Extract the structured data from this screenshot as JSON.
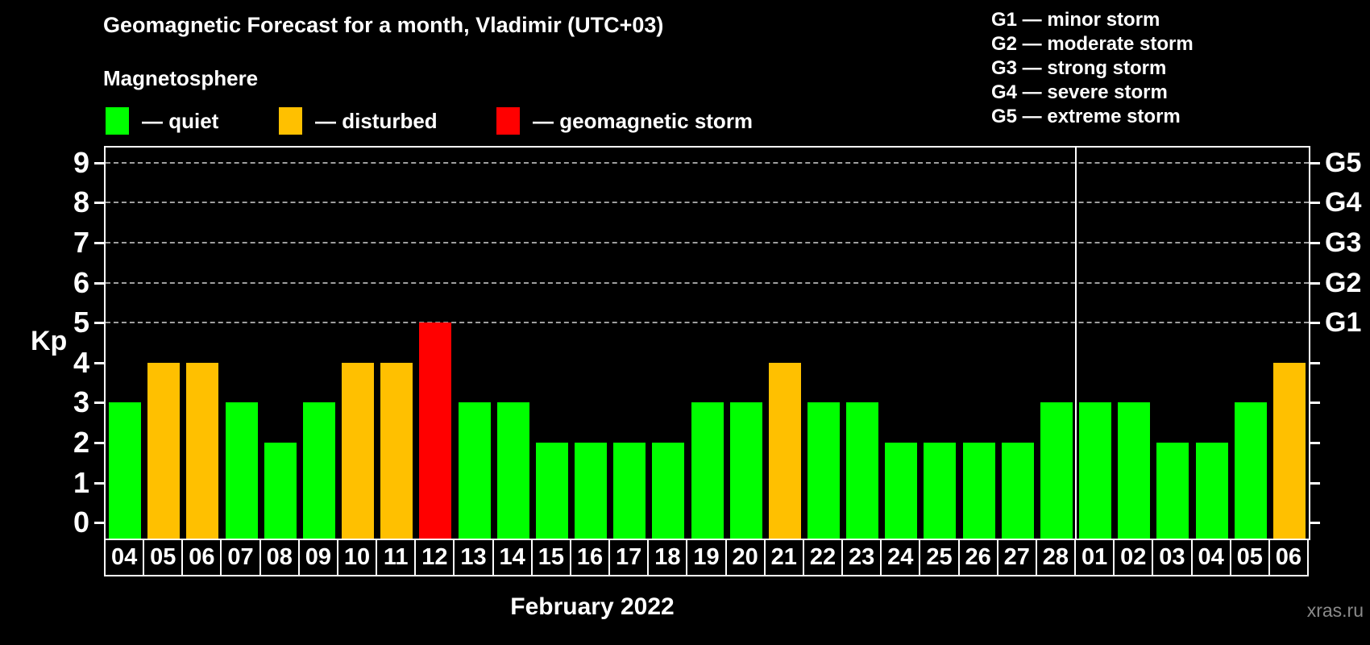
{
  "header": {
    "title": "Geomagnetic Forecast for a month, Vladimir (UTC+03)",
    "subtitle": "Magnetosphere"
  },
  "legend": {
    "items": [
      {
        "name": "quiet",
        "label": "— quiet",
        "color": "#00ff00"
      },
      {
        "name": "disturbed",
        "label": "— disturbed",
        "color": "#ffc000"
      },
      {
        "name": "storm",
        "label": "— geomagnetic storm",
        "color": "#ff0000"
      }
    ]
  },
  "storm_scale": {
    "items": [
      "G1 — minor storm",
      "G2 — moderate storm",
      "G3 — strong storm",
      "G4 — severe storm",
      "G5 — extreme storm"
    ]
  },
  "chart_data": {
    "type": "bar",
    "title": "Geomagnetic Forecast for a month, Vladimir (UTC+03)",
    "ylabel": "Kp",
    "xlabel": "February 2022",
    "ylim": [
      0,
      9
    ],
    "yticks": [
      0,
      1,
      2,
      3,
      4,
      5,
      6,
      7,
      8,
      9
    ],
    "gridlines_at_kp": [
      5,
      6,
      7,
      8,
      9
    ],
    "right_axis": {
      "labels": [
        "G1",
        "G2",
        "G3",
        "G4",
        "G5"
      ],
      "at_kp": [
        5,
        6,
        7,
        8,
        9
      ]
    },
    "categories": [
      "04",
      "05",
      "06",
      "07",
      "08",
      "09",
      "10",
      "11",
      "12",
      "13",
      "14",
      "15",
      "16",
      "17",
      "18",
      "19",
      "20",
      "21",
      "22",
      "23",
      "24",
      "25",
      "26",
      "27",
      "28",
      "01",
      "02",
      "03",
      "04",
      "05",
      "06"
    ],
    "values": [
      3,
      4,
      4,
      3,
      2,
      3,
      4,
      4,
      5,
      3,
      3,
      2,
      2,
      2,
      2,
      3,
      3,
      4,
      3,
      3,
      2,
      2,
      2,
      2,
      3,
      3,
      3,
      2,
      2,
      3,
      4
    ],
    "statuses": [
      "quiet",
      "disturbed",
      "disturbed",
      "quiet",
      "quiet",
      "quiet",
      "disturbed",
      "disturbed",
      "storm",
      "quiet",
      "quiet",
      "quiet",
      "quiet",
      "quiet",
      "quiet",
      "quiet",
      "quiet",
      "disturbed",
      "quiet",
      "quiet",
      "quiet",
      "quiet",
      "quiet",
      "quiet",
      "quiet",
      "quiet",
      "quiet",
      "quiet",
      "quiet",
      "quiet",
      "disturbed"
    ],
    "status_colors": {
      "quiet": "#00ff00",
      "disturbed": "#ffc000",
      "storm": "#ff0000"
    },
    "month_separator_after_index": 24,
    "legend_position": "top-left",
    "grid": "dashed-horizontal-G-levels-only"
  },
  "watermark": "xras.ru"
}
